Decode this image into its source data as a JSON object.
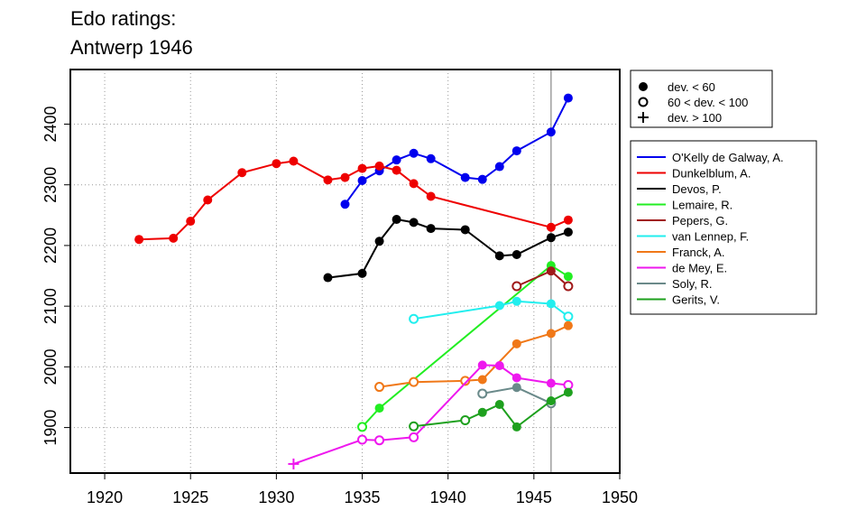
{
  "chart_data": {
    "type": "line",
    "title_lines": [
      "Edo ratings:",
      "Antwerp 1946"
    ],
    "xlim": [
      1918,
      1950
    ],
    "ylim": [
      1825,
      2490
    ],
    "x_ticks": [
      1920,
      1925,
      1930,
      1935,
      1940,
      1945,
      1950
    ],
    "y_ticks": [
      1900,
      2000,
      2100,
      2200,
      2300,
      2400
    ],
    "grid": "dotted",
    "reference_line_x": 1946,
    "marker_legend": [
      {
        "marker": "filled",
        "label": "dev. < 60"
      },
      {
        "marker": "open",
        "label": "60 < dev. < 100"
      },
      {
        "marker": "plus",
        "label": "dev. > 100"
      }
    ],
    "series": [
      {
        "name": "O'Kelly de Galway, A.",
        "color": "#0000ee",
        "points": [
          [
            1934,
            2268,
            "f"
          ],
          [
            1935,
            2307,
            "f"
          ],
          [
            1936,
            2323,
            "f"
          ],
          [
            1937,
            2341,
            "f"
          ],
          [
            1938,
            2352,
            "f"
          ],
          [
            1939,
            2343,
            "f"
          ],
          [
            1941,
            2312,
            "f"
          ],
          [
            1942,
            2309,
            "f"
          ],
          [
            1943,
            2330,
            "f"
          ],
          [
            1944,
            2356,
            "f"
          ],
          [
            1946,
            2387,
            "f"
          ],
          [
            1947,
            2443,
            "f"
          ]
        ]
      },
      {
        "name": "Dunkelblum, A.",
        "color": "#ee0000",
        "points": [
          [
            1922,
            2210,
            "f"
          ],
          [
            1924,
            2212,
            "f"
          ],
          [
            1925,
            2240,
            "f"
          ],
          [
            1926,
            2275,
            "f"
          ],
          [
            1928,
            2320,
            "f"
          ],
          [
            1930,
            2335,
            "f"
          ],
          [
            1931,
            2339,
            "f"
          ],
          [
            1933,
            2308,
            "f"
          ],
          [
            1934,
            2312,
            "f"
          ],
          [
            1935,
            2327,
            "f"
          ],
          [
            1936,
            2331,
            "f"
          ],
          [
            1937,
            2324,
            "f"
          ],
          [
            1938,
            2302,
            "f"
          ],
          [
            1939,
            2281,
            "f"
          ],
          [
            1946,
            2230,
            "f"
          ],
          [
            1947,
            2242,
            "f"
          ]
        ]
      },
      {
        "name": "Devos, P.",
        "color": "#000000",
        "points": [
          [
            1933,
            2147,
            "f"
          ],
          [
            1935,
            2154,
            "f"
          ],
          [
            1936,
            2207,
            "f"
          ],
          [
            1937,
            2243,
            "f"
          ],
          [
            1938,
            2238,
            "f"
          ],
          [
            1939,
            2228,
            "f"
          ],
          [
            1941,
            2226,
            "f"
          ],
          [
            1943,
            2183,
            "f"
          ],
          [
            1944,
            2185,
            "f"
          ],
          [
            1946,
            2213,
            "f"
          ],
          [
            1947,
            2222,
            "f"
          ]
        ]
      },
      {
        "name": "Lemaire, R.",
        "color": "#22ee22",
        "points": [
          [
            1935,
            1901,
            "o"
          ],
          [
            1936,
            1932,
            "f"
          ],
          [
            1946,
            2167,
            "f"
          ],
          [
            1947,
            2149,
            "f"
          ]
        ]
      },
      {
        "name": "Pepers, G.",
        "color": "#a01a1a",
        "points": [
          [
            1944,
            2133,
            "o"
          ],
          [
            1946,
            2158,
            "f"
          ],
          [
            1947,
            2133,
            "o"
          ]
        ]
      },
      {
        "name": "van Lennep, F.",
        "color": "#22eeee",
        "points": [
          [
            1938,
            2079,
            "o"
          ],
          [
            1943,
            2101,
            "f"
          ],
          [
            1944,
            2108,
            "f"
          ],
          [
            1946,
            2104,
            "f"
          ],
          [
            1947,
            2083,
            "o"
          ]
        ]
      },
      {
        "name": "Franck, A.",
        "color": "#f07818",
        "points": [
          [
            1936,
            1967,
            "o"
          ],
          [
            1938,
            1975,
            "o"
          ],
          [
            1941,
            1977,
            "o"
          ],
          [
            1942,
            1979,
            "f"
          ],
          [
            1944,
            2038,
            "f"
          ],
          [
            1946,
            2055,
            "f"
          ],
          [
            1947,
            2068,
            "f"
          ]
        ]
      },
      {
        "name": "de Mey, E.",
        "color": "#ee18ee",
        "points": [
          [
            1931,
            1840,
            "p"
          ],
          [
            1935,
            1880,
            "o"
          ],
          [
            1936,
            1879,
            "o"
          ],
          [
            1938,
            1884,
            "o"
          ],
          [
            1942,
            2003,
            "f"
          ],
          [
            1943,
            2002,
            "f"
          ],
          [
            1944,
            1982,
            "f"
          ],
          [
            1946,
            1973,
            "f"
          ],
          [
            1947,
            1970,
            "o"
          ]
        ]
      },
      {
        "name": "Soly, R.",
        "color": "#6a8a8a",
        "points": [
          [
            1942,
            1956,
            "o"
          ],
          [
            1944,
            1966,
            "f"
          ],
          [
            1946,
            1940,
            "o"
          ]
        ]
      },
      {
        "name": "Gerits, V.",
        "color": "#1ea01e",
        "points": [
          [
            1938,
            1902,
            "o"
          ],
          [
            1941,
            1912,
            "o"
          ],
          [
            1942,
            1925,
            "f"
          ],
          [
            1943,
            1938,
            "f"
          ],
          [
            1944,
            1901,
            "f"
          ],
          [
            1946,
            1944,
            "f"
          ],
          [
            1947,
            1958,
            "f"
          ]
        ]
      }
    ]
  }
}
